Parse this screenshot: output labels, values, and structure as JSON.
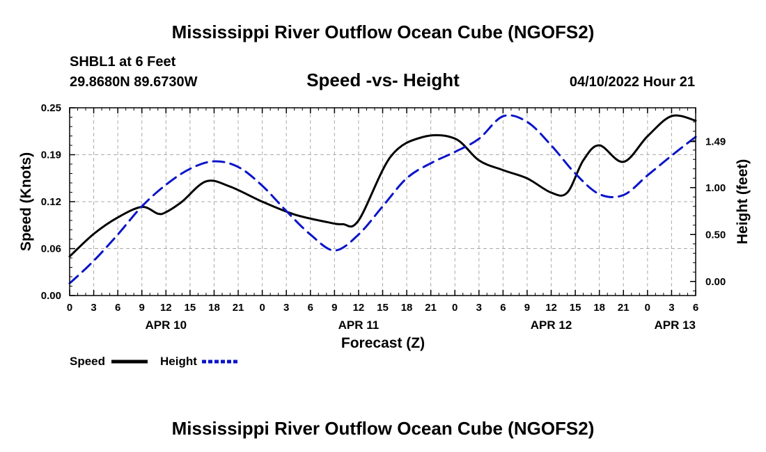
{
  "page": {
    "main_title": "Mississippi River Outflow Ocean Cube (NGOFS2)",
    "bottom_title": "Mississippi River Outflow Ocean Cube (NGOFS2)",
    "station": "SHBL1 at 6 Feet",
    "location": "29.8680N  89.6730W",
    "run_time": "04/10/2022 Hour 21"
  },
  "colors": {
    "speed": "#000000",
    "height": "#0a14c8",
    "grid": "#aaaaaa"
  },
  "chart_data": {
    "type": "line",
    "title": "Speed -vs- Height",
    "xlabel": "Forecast (Z)",
    "ylabel": "Speed (Knots)",
    "y2label": "Height (feet)",
    "x_range_hours": [
      0,
      78
    ],
    "x_tick_step_hours": 3,
    "x_tick_labels": [
      "0",
      "3",
      "6",
      "9",
      "12",
      "15",
      "18",
      "21",
      "0",
      "3",
      "6",
      "9",
      "12",
      "15",
      "18",
      "21",
      "0",
      "3",
      "6",
      "9",
      "12",
      "15",
      "18",
      "21",
      "0",
      "3",
      "6"
    ],
    "date_labels": [
      {
        "label": "APR 10",
        "hour": 12
      },
      {
        "label": "APR 11",
        "hour": 36
      },
      {
        "label": "APR 12",
        "hour": 60
      },
      {
        "label": "APR 13",
        "hour": 78
      }
    ],
    "ylim": [
      0,
      0.25
    ],
    "y_ticks": [
      "0.00",
      "0.06",
      "0.12",
      "0.19",
      "0.25"
    ],
    "y_tick_values": [
      0,
      0.0625,
      0.125,
      0.1875,
      0.25
    ],
    "y2lim": [
      -0.15,
      1.85
    ],
    "y2_ticks": [
      "0.00",
      "0.50",
      "1.00",
      "1.49"
    ],
    "y2_tick_values": [
      0,
      0.5,
      1.0,
      1.49
    ],
    "series": [
      {
        "name": "Speed",
        "axis": "left",
        "style": "solid",
        "x": [
          0,
          3,
          6,
          9,
          11,
          12,
          14,
          17,
          20,
          24,
          28,
          32,
          34,
          36,
          40,
          44,
          48,
          51,
          54,
          57,
          60,
          62,
          64,
          66,
          69,
          72,
          75,
          78
        ],
        "values": [
          0.052,
          0.082,
          0.104,
          0.118,
          0.109,
          0.111,
          0.125,
          0.152,
          0.145,
          0.125,
          0.108,
          0.098,
          0.095,
          0.1,
          0.185,
          0.211,
          0.209,
          0.18,
          0.167,
          0.156,
          0.137,
          0.137,
          0.18,
          0.2,
          0.178,
          0.212,
          0.239,
          0.233
        ]
      },
      {
        "name": "Height",
        "axis": "right",
        "style": "dashed",
        "x": [
          0,
          3,
          6,
          9,
          12,
          15,
          18,
          21,
          24,
          27,
          30,
          33,
          36,
          39,
          42,
          45,
          48,
          51,
          54,
          57,
          60,
          63,
          66,
          69,
          72,
          75,
          78
        ],
        "values": [
          -0.02,
          0.22,
          0.5,
          0.8,
          1.03,
          1.2,
          1.28,
          1.22,
          1.02,
          0.75,
          0.5,
          0.33,
          0.5,
          0.8,
          1.1,
          1.26,
          1.38,
          1.52,
          1.76,
          1.7,
          1.45,
          1.15,
          0.93,
          0.92,
          1.13,
          1.34,
          1.54
        ]
      }
    ],
    "legend": [
      {
        "label": "Speed"
      },
      {
        "label": "Height"
      }
    ],
    "grid": true
  }
}
